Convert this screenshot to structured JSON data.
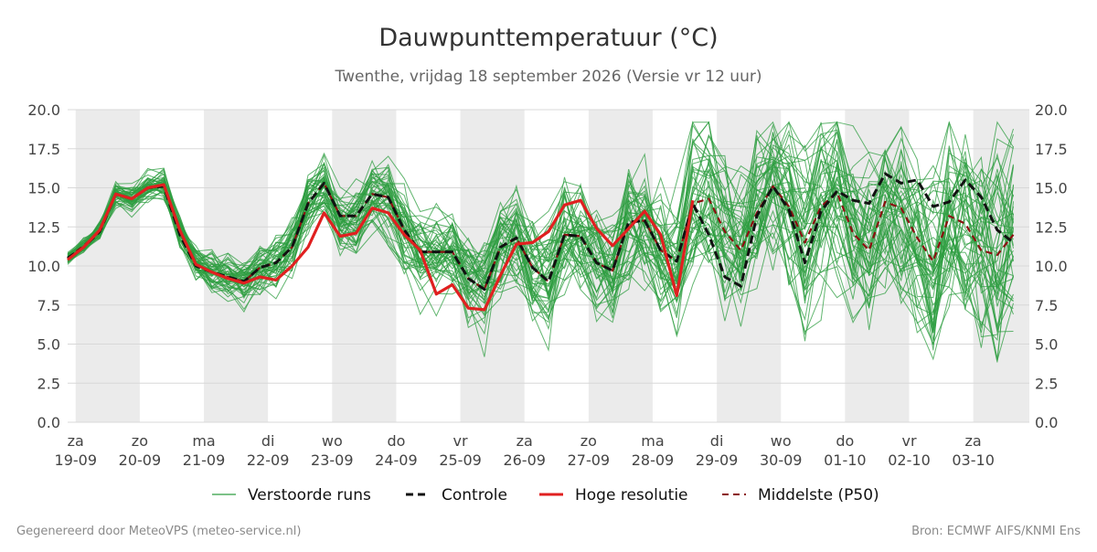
{
  "chart_data": {
    "type": "line",
    "title": "Dauwpunttemperatuur (°C)",
    "subtitle": "Twenthe, vrijdag 18 september 2026 (Versie vr 12 uur)",
    "x_start": "2026-09-18 21:00",
    "x_end": "2026-10-03 21:00",
    "time_step_hours": 6,
    "ylim": [
      0,
      20
    ],
    "yticks": [
      "0.0",
      "2.5",
      "5.0",
      "7.5",
      "10.0",
      "12.5",
      "15.0",
      "17.5",
      "20.0"
    ],
    "grid": true,
    "weekend_shading": true,
    "x_ticks": [
      {
        "day": "za",
        "date": "19-09"
      },
      {
        "day": "zo",
        "date": "20-09"
      },
      {
        "day": "ma",
        "date": "21-09"
      },
      {
        "day": "di",
        "date": "22-09"
      },
      {
        "day": "wo",
        "date": "23-09"
      },
      {
        "day": "do",
        "date": "24-09"
      },
      {
        "day": "vr",
        "date": "25-09"
      },
      {
        "day": "za",
        "date": "26-09"
      },
      {
        "day": "zo",
        "date": "27-09"
      },
      {
        "day": "ma",
        "date": "28-09"
      },
      {
        "day": "di",
        "date": "29-09"
      },
      {
        "day": "wo",
        "date": "30-09"
      },
      {
        "day": "do",
        "date": "01-10"
      },
      {
        "day": "vr",
        "date": "02-10"
      },
      {
        "day": "za",
        "date": "03-10"
      }
    ],
    "legend_position": "bottom",
    "series": [
      {
        "name": "Verstoorde runs",
        "color": "#2e9e40",
        "style": "thin",
        "count": 50
      },
      {
        "name": "Controle",
        "color": "#111111",
        "style": "dashed",
        "values": [
          10.5,
          11.2,
          12.2,
          14.6,
          14.3,
          15.0,
          15.1,
          12.0,
          10.0,
          9.6,
          9.3,
          9.0,
          9.9,
          10.2,
          11.2,
          14.0,
          15.3,
          13.2,
          13.2,
          14.6,
          14.4,
          12.3,
          10.9,
          10.9,
          10.9,
          9.2,
          8.5,
          11.2,
          11.8,
          9.9,
          9.0,
          12.0,
          11.9,
          10.2,
          9.7,
          12.8,
          12.9,
          11.0,
          10.3,
          14.0,
          12.0,
          9.3,
          8.7,
          13.2,
          15.1,
          13.6,
          10.2,
          13.5,
          14.8,
          14.2,
          14.0,
          15.9,
          15.3,
          15.5,
          13.8,
          14.1,
          15.5,
          14.4,
          12.3,
          11.5
        ]
      },
      {
        "name": "Hoge resolutie",
        "color": "#e02020",
        "style": "bold",
        "values": [
          10.4,
          11.2,
          12.3,
          14.6,
          14.3,
          15.0,
          15.2,
          12.3,
          10.1,
          9.6,
          9.2,
          8.9,
          9.3,
          9.1,
          10.0,
          11.2,
          13.4,
          11.9,
          12.1,
          13.7,
          13.4,
          12.0,
          11.0,
          8.2,
          8.8,
          7.3,
          7.2,
          9.4,
          11.4,
          11.5,
          12.2,
          13.9,
          14.2,
          12.4,
          11.3,
          12.4,
          13.5,
          12.0,
          8.1,
          14.2
        ]
      },
      {
        "name": "Middelste (P50)",
        "color": "#8b1010",
        "style": "dashed",
        "values": [
          10.5,
          11.3,
          12.2,
          14.6,
          14.3,
          15.0,
          15.1,
          12.2,
          10.1,
          9.6,
          9.3,
          9.0,
          9.9,
          10.2,
          11.2,
          14.0,
          15.3,
          13.2,
          13.2,
          14.6,
          14.4,
          12.3,
          10.9,
          10.9,
          10.9,
          9.2,
          8.5,
          11.2,
          11.8,
          9.9,
          9.0,
          12.0,
          11.9,
          10.2,
          9.7,
          12.8,
          12.9,
          11.0,
          10.3,
          14.0,
          14.3,
          12.2,
          11.0,
          13.4,
          15.1,
          13.8,
          11.5,
          13.8,
          14.7,
          12.1,
          11.0,
          14.1,
          13.7,
          11.8,
          10.3,
          13.2,
          12.7,
          11.0,
          10.7,
          12.0
        ]
      }
    ]
  },
  "legend": {
    "ensemble": "Verstoorde runs",
    "control": "Controle",
    "hires": "Hoge resolutie",
    "median": "Middelste (P50)"
  },
  "footer": {
    "left": "Gegenereerd door MeteoVPS (meteo-service.nl)",
    "right": "Bron: ECMWF AIFS/KNMI Ens"
  },
  "colors": {
    "ensemble": "#2e9e40",
    "control": "#111111",
    "hires": "#e02020",
    "median": "#8b1010",
    "weekend": "#ebebeb",
    "grid": "#d8d8d8"
  }
}
